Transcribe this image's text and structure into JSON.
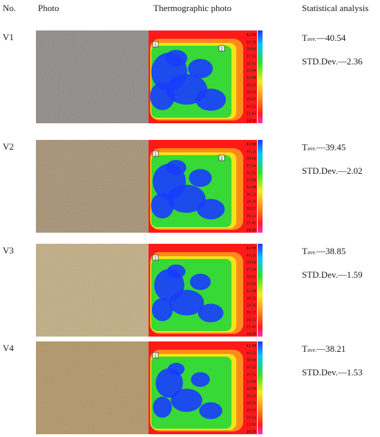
{
  "headers": {
    "no": "No.",
    "photo": "Photo",
    "thermo": "Thermographic photo",
    "stats": "Statistical analysis"
  },
  "scale_labels": [
    "41.58",
    "40.15",
    "38.66",
    "37.12",
    "35.51",
    "33.84",
    "32.08",
    "30.25",
    "28.32",
    "26.27",
    "24.11",
    "21.82",
    "19.35"
  ],
  "colors": {
    "hot": "#ff1a1a",
    "warm": "#ff8c1a",
    "mid": "#f2e41a",
    "cool": "#36d936",
    "cold": "#1a3cff"
  },
  "rows": [
    {
      "no": "V1",
      "t_main": "T",
      "t_sub": "ave.",
      "t_val": "—40.54",
      "std": "STD.Dev.—2.36",
      "photo_color": "#8a8783",
      "marker_labels": [
        "1",
        "2"
      ]
    },
    {
      "no": "V2",
      "t_main": "T",
      "t_sub": "ave.",
      "t_val": "—39.45",
      "std": "STD.Dev.—2.02",
      "photo_color": "#a58e6d",
      "marker_labels": [
        "1",
        "2"
      ]
    },
    {
      "no": "V3",
      "t_main": "T",
      "t_sub": "ave.",
      "t_val": "—38.85",
      "std": "STD.Dev.—1.59",
      "photo_color": "#c2ac80",
      "marker_labels": [
        "1"
      ]
    },
    {
      "no": "V4",
      "t_main": "T",
      "t_sub": "ave.",
      "t_val": "—38.21",
      "std": "STD.Dev.—1.53",
      "photo_color": "#b0925f",
      "marker_labels": [
        "1"
      ]
    }
  ]
}
